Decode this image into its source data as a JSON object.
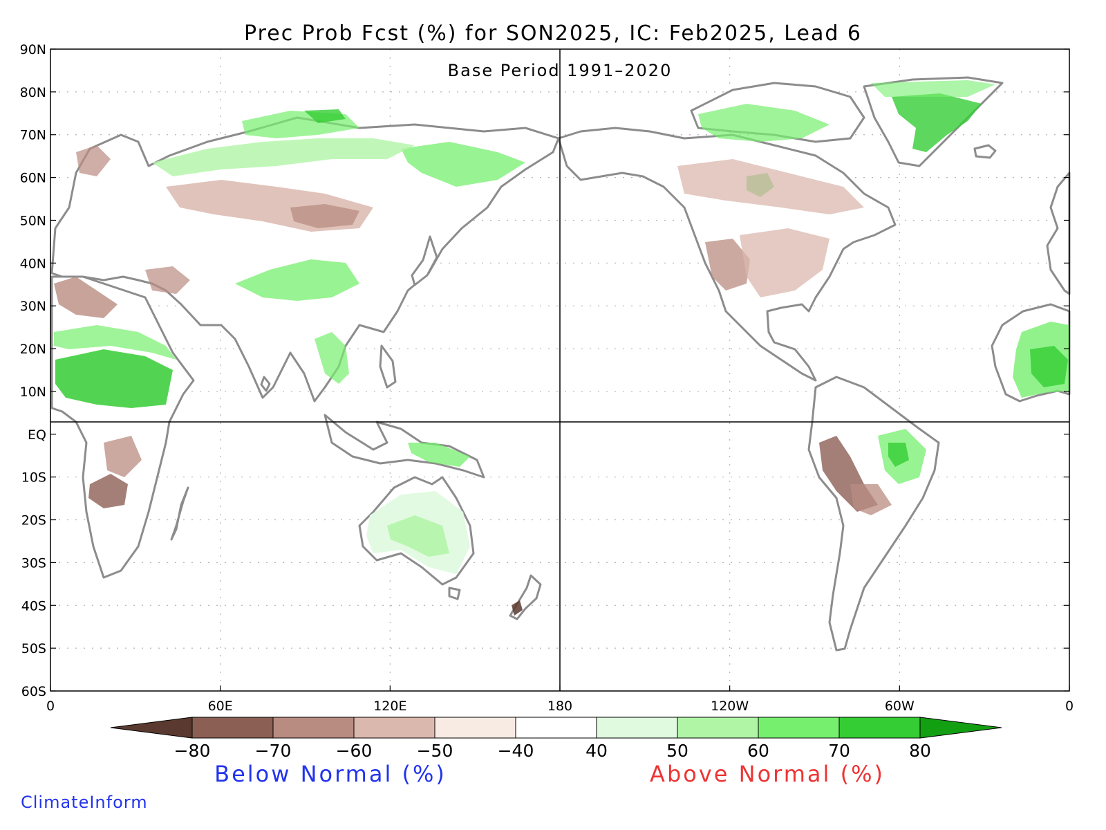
{
  "title": "Prec Prob Fcst (%) for SON2025, IC: Feb2025, Lead 6",
  "subtitle": "Base Period 1991–2020",
  "lat_labels": [
    "90N",
    "80N",
    "70N",
    "60N",
    "50N",
    "40N",
    "30N",
    "20N",
    "10N",
    "EQ",
    "10S",
    "20S",
    "30S",
    "40S",
    "50S",
    "60S"
  ],
  "lon_labels": [
    "0",
    "60E",
    "120E",
    "180",
    "120W",
    "60W",
    "0"
  ],
  "legend": {
    "tick_labels": [
      "−80",
      "−70",
      "−60",
      "−50",
      "−40",
      "40",
      "50",
      "60",
      "70",
      "80"
    ],
    "below_label": "Below Normal (%)",
    "above_label": "Above Normal (%)",
    "below_color": "#2233ee",
    "above_color": "#ee3333",
    "colors": [
      "#5a3a30",
      "#8c5f55",
      "#b98c81",
      "#dbb8ae",
      "#f7ebe3",
      "#ffffff",
      "#e0fae0",
      "#b0f5a6",
      "#76ef6e",
      "#34cd34",
      "#12a012"
    ]
  },
  "credit": "ClimateInform",
  "colors": {
    "coast": "#8c8c8c",
    "grid": "#b4b4b4",
    "frame": "#000000"
  }
}
